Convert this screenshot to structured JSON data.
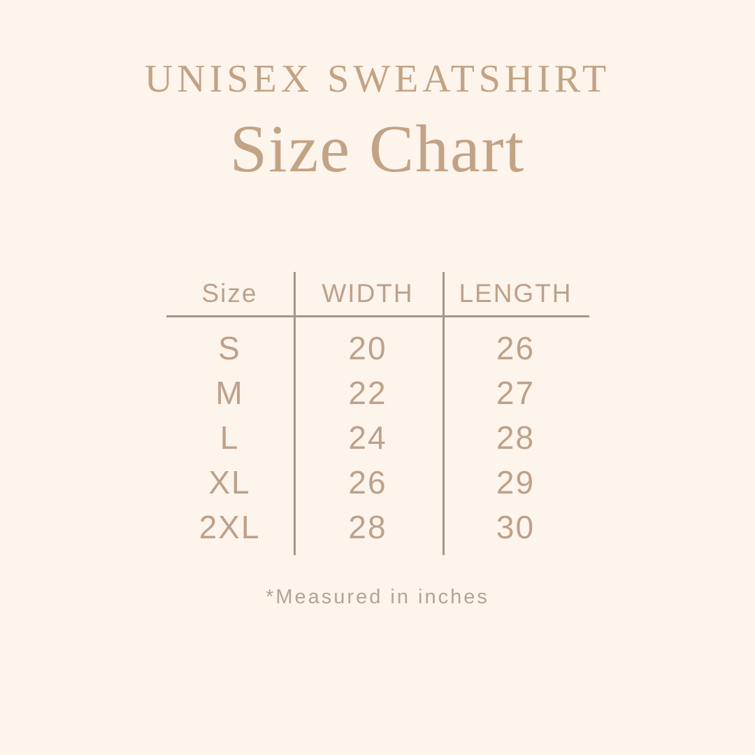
{
  "title": "UNISEX SWEATSHIRT",
  "subtitle": "Size Chart",
  "chart_data": {
    "type": "table",
    "title": "UNISEX SWEATSHIRT Size Chart",
    "columns": [
      "Size",
      "WIDTH",
      "LENGTH"
    ],
    "rows": [
      [
        "S",
        "20",
        "26"
      ],
      [
        "M",
        "22",
        "27"
      ],
      [
        "L",
        "24",
        "28"
      ],
      [
        "XL",
        "26",
        "29"
      ],
      [
        "2XL",
        "28",
        "30"
      ]
    ],
    "units": "inches",
    "footnote": "*Measured in inches"
  },
  "colors": {
    "background": "#fdf4ec",
    "title_text": "#c2a385",
    "table_text": "#bda189",
    "divider_line": "#a59689",
    "footnote_text": "#b3a495"
  }
}
